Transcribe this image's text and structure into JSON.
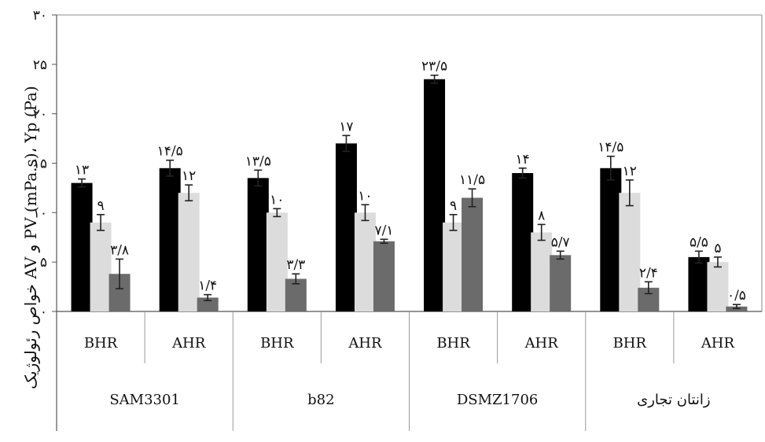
{
  "chart_data": {
    "type": "bar",
    "title": "",
    "xlabel": "",
    "ylabel": "خواص رئولوژیک AV و PV (mPa.s)، Yp (Pa)",
    "ylim": [
      0,
      30
    ],
    "yticks": [
      "۰",
      "۵",
      "۱۰",
      "۱۵",
      "۲۰",
      "۲۵",
      "۳۰"
    ],
    "grid": false,
    "legend": "none",
    "groups": [
      {
        "name": "SAM3301",
        "subgroups": [
          "BHR",
          "AHR"
        ]
      },
      {
        "name": "b82",
        "subgroups": [
          "BHR",
          "AHR"
        ]
      },
      {
        "name": "DSMZ1706",
        "subgroups": [
          "BHR",
          "AHR"
        ]
      },
      {
        "name": "زانتان تجاری",
        "subgroups": [
          "BHR",
          "AHR"
        ]
      }
    ],
    "categories": [
      "SAM3301 BHR",
      "SAM3301 AHR",
      "b82 BHR",
      "b82 AHR",
      "DSMZ1706 BHR",
      "DSMZ1706 AHR",
      "زانتان تجاری BHR",
      "زانتان تجاری AHR"
    ],
    "series": [
      {
        "color": "#000000",
        "values": [
          13,
          14.5,
          13.5,
          17,
          23.5,
          14,
          14.5,
          5.5
        ],
        "errors": [
          0.4,
          0.8,
          0.8,
          0.8,
          0.4,
          0.5,
          1.2,
          0.6
        ],
        "labels": [
          "۱۳",
          "۱۴/۵",
          "۱۳/۵",
          "۱۷",
          "۲۳/۵",
          "۱۴",
          "۱۴/۵",
          "۵/۵"
        ]
      },
      {
        "color": "#dcdcdc",
        "values": [
          9,
          12,
          10,
          10,
          9,
          8,
          12,
          5
        ],
        "errors": [
          0.8,
          0.8,
          0.4,
          0.8,
          0.8,
          0.8,
          1.3,
          0.5
        ],
        "labels": [
          "۹",
          "۱۲",
          "۱۰",
          "۱۰",
          "۹",
          "۸",
          "۱۲",
          "۵"
        ]
      },
      {
        "color": "#6b6b6b",
        "values": [
          3.8,
          1.4,
          3.3,
          7.1,
          11.5,
          5.7,
          2.4,
          0.5
        ],
        "errors": [
          1.5,
          0.3,
          0.5,
          0.2,
          0.9,
          0.4,
          0.6,
          0.2
        ],
        "labels": [
          "۳/۸",
          "۱/۴",
          "۳/۳",
          "۷/۱",
          "۱۱/۵",
          "۵/۷",
          "۲/۴",
          "۰/۵"
        ]
      }
    ]
  }
}
